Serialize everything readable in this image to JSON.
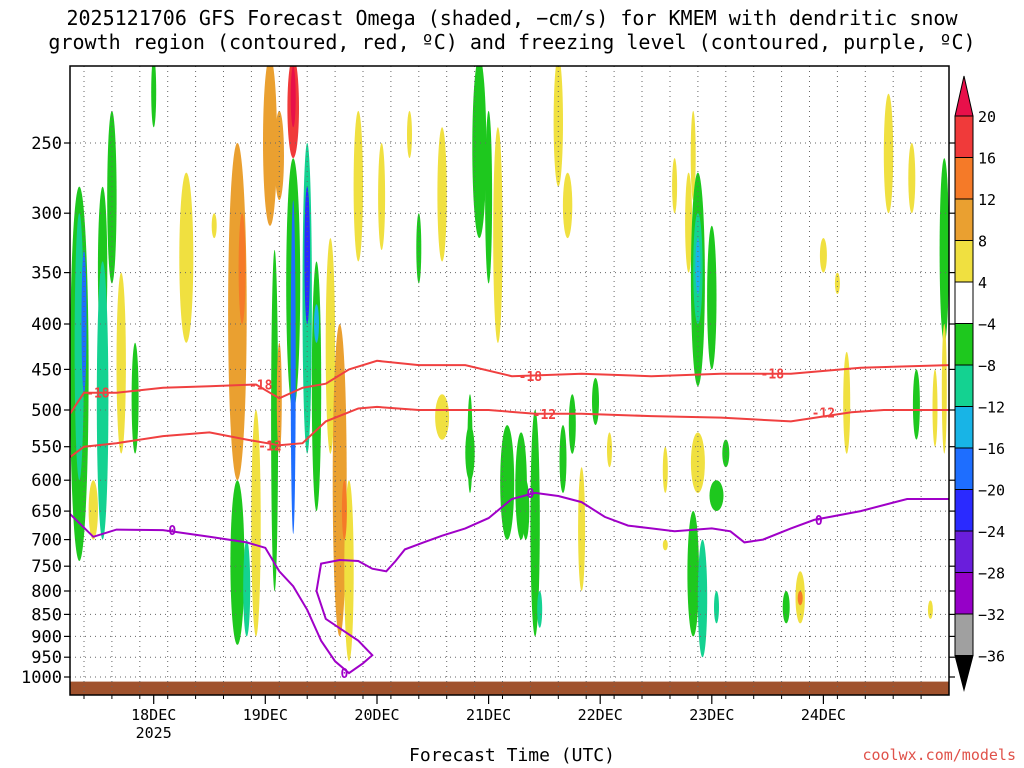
{
  "title_line1": "2025121706 GFS Forecast Omega (shaded, −cm/s) for KMEM with dendritic snow",
  "title_line2": "growth region (contoured, red, ºC) and freezing level (contoured, purple, ºC)",
  "credit": "coolwx.com/models",
  "chart_data": {
    "type": "heatmap",
    "xlabel": "Forecast Time (UTC)",
    "x_ticks": [
      "18DEC",
      "19DEC",
      "20DEC",
      "21DEC",
      "22DEC",
      "23DEC",
      "24DEC"
    ],
    "x_year_label": "2025",
    "xlim_hours_from_init": [
      0,
      189
    ],
    "y_axis": "pressure (hPa)",
    "y_ticks": [
      250,
      300,
      350,
      400,
      450,
      500,
      550,
      600,
      650,
      700,
      750,
      800,
      850,
      900,
      950,
      1000
    ],
    "ylim": [
      1020,
      200
    ],
    "y_scale": "log",
    "grid": true,
    "colorbar": {
      "labels": [
        "20",
        "16",
        "12",
        "8",
        "4",
        "−4",
        "−8",
        "−12",
        "−16",
        "−20",
        "−24",
        "−28",
        "−32",
        "−36"
      ],
      "bounds": [
        20,
        16,
        12,
        8,
        4,
        -4,
        -8,
        -12,
        -16,
        -20,
        -24,
        -28,
        -32,
        -36
      ],
      "colors": [
        "#e8104a",
        "#f03a3a",
        "#f57a28",
        "#eaa030",
        "#f0e040",
        "#ffffff",
        "#1ec81e",
        "#14d291",
        "#18b4e6",
        "#1e6eff",
        "#2a2aff",
        "#6a1edc",
        "#9600c8",
        "#a0a0a0",
        "#000000"
      ]
    },
    "contours": [
      {
        "name": "-18",
        "color": "#f04040",
        "label_hours": [
          6,
          41,
          99,
          151
        ],
        "points": [
          [
            0,
            505
          ],
          [
            3,
            478
          ],
          [
            10,
            478
          ],
          [
            20,
            472
          ],
          [
            30,
            470
          ],
          [
            40,
            468
          ],
          [
            45,
            485
          ],
          [
            50,
            472
          ],
          [
            55,
            467
          ],
          [
            60,
            450
          ],
          [
            66,
            440
          ],
          [
            75,
            445
          ],
          [
            85,
            445
          ],
          [
            95,
            458
          ],
          [
            110,
            455
          ],
          [
            125,
            458
          ],
          [
            140,
            455
          ],
          [
            155,
            455
          ],
          [
            170,
            448
          ],
          [
            189,
            445
          ]
        ]
      },
      {
        "name": "-12",
        "color": "#f04040",
        "label_hours": [
          43,
          102,
          162
        ],
        "points": [
          [
            0,
            565
          ],
          [
            3,
            550
          ],
          [
            10,
            545
          ],
          [
            20,
            535
          ],
          [
            30,
            530
          ],
          [
            38,
            540
          ],
          [
            45,
            548
          ],
          [
            50,
            545
          ],
          [
            55,
            515
          ],
          [
            62,
            498
          ],
          [
            66,
            496
          ],
          [
            75,
            500
          ],
          [
            90,
            500
          ],
          [
            100,
            505
          ],
          [
            110,
            505
          ],
          [
            125,
            508
          ],
          [
            140,
            510
          ],
          [
            155,
            515
          ],
          [
            168,
            503
          ],
          [
            175,
            500
          ],
          [
            189,
            500
          ]
        ]
      },
      {
        "name": "0",
        "color": "#a000c8",
        "label_hours": [
          22,
          59,
          99,
          161
        ],
        "points": [
          [
            0,
            655
          ],
          [
            5,
            695
          ],
          [
            10,
            682
          ],
          [
            20,
            683
          ],
          [
            30,
            695
          ],
          [
            38,
            705
          ],
          [
            42,
            715
          ],
          [
            45,
            760
          ],
          [
            48,
            790
          ],
          [
            51,
            840
          ],
          [
            54,
            910
          ],
          [
            57,
            960
          ],
          [
            60,
            990
          ],
          [
            63,
            965
          ],
          [
            65,
            945
          ],
          [
            62,
            910
          ],
          [
            55,
            860
          ],
          [
            53,
            800
          ],
          [
            54,
            745
          ],
          [
            58,
            738
          ],
          [
            62,
            740
          ],
          [
            65,
            755
          ],
          [
            68,
            760
          ],
          [
            70,
            740
          ],
          [
            72,
            718
          ],
          [
            76,
            705
          ],
          [
            80,
            693
          ],
          [
            85,
            680
          ],
          [
            90,
            662
          ],
          [
            95,
            630
          ],
          [
            100,
            620
          ],
          [
            105,
            625
          ],
          [
            110,
            635
          ],
          [
            115,
            660
          ],
          [
            120,
            675
          ],
          [
            125,
            680
          ],
          [
            130,
            685
          ],
          [
            138,
            680
          ],
          [
            142,
            685
          ],
          [
            145,
            705
          ],
          [
            149,
            700
          ],
          [
            155,
            680
          ],
          [
            160,
            665
          ],
          [
            170,
            650
          ],
          [
            180,
            630
          ],
          [
            189,
            630
          ]
        ]
      }
    ]
  }
}
